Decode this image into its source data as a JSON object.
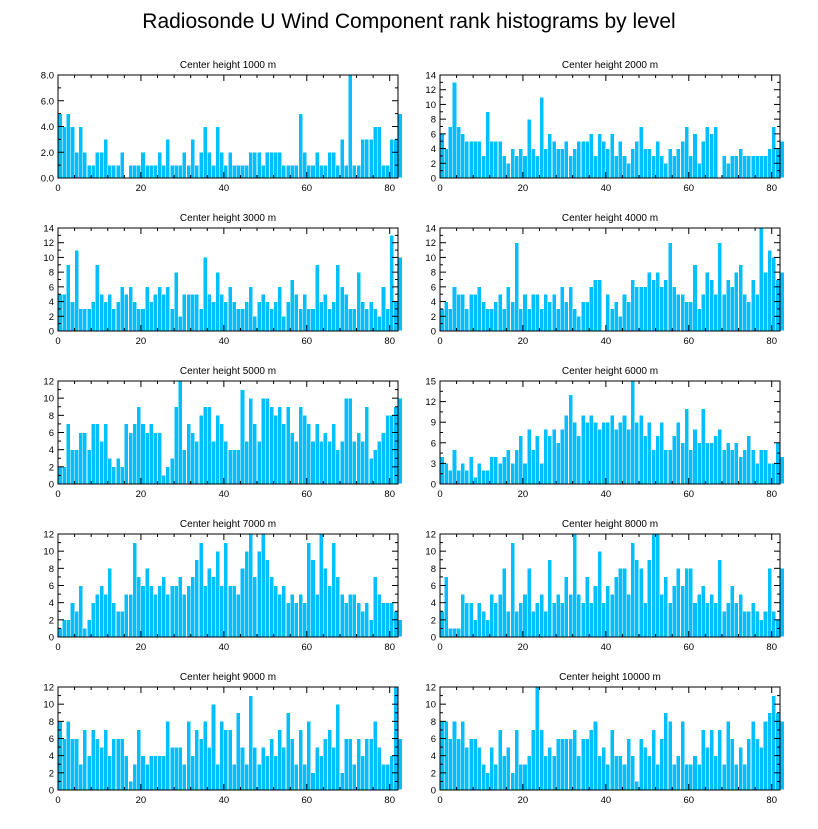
{
  "figure": {
    "title": "Radiosonde U Wind Component rank histograms by level"
  },
  "colors": {
    "bar": "#00bfff",
    "bar_edge": "#ffffff",
    "axis": "#000000"
  },
  "chart_data": [
    {
      "type": "bar",
      "title": "Center height 1000 m",
      "xlim": [
        0,
        82
      ],
      "ylim": [
        0,
        8
      ],
      "xticks": [
        0,
        20,
        40,
        60,
        80
      ],
      "yticks": [
        0,
        2,
        4,
        6,
        8
      ],
      "ytick_labels": [
        "0.0",
        "2.0",
        "4.0",
        "6.0",
        "8.0"
      ],
      "values": [
        5,
        4,
        5,
        4,
        2,
        4,
        2,
        1,
        1,
        2,
        2,
        3,
        1,
        1,
        1,
        2,
        0,
        1,
        1,
        1,
        2,
        1,
        1,
        1,
        2,
        1,
        3,
        1,
        1,
        1,
        2,
        1,
        3,
        1,
        2,
        4,
        2,
        1,
        4,
        2,
        1,
        2,
        1,
        1,
        1,
        1,
        2,
        2,
        2,
        1,
        2,
        2,
        2,
        2,
        1,
        1,
        1,
        1,
        5,
        2,
        1,
        1,
        2,
        1,
        1,
        2,
        2,
        1,
        3,
        1,
        8,
        1,
        1,
        3,
        3,
        3,
        4,
        4,
        1,
        1,
        3,
        3,
        5
      ]
    },
    {
      "type": "bar",
      "title": "Center height 2000 m",
      "xlim": [
        0,
        82
      ],
      "ylim": [
        0,
        14
      ],
      "xticks": [
        0,
        20,
        40,
        60,
        80
      ],
      "yticks": [
        0,
        2,
        4,
        6,
        8,
        10,
        12,
        14
      ],
      "ytick_labels": [
        "0",
        "2",
        "4",
        "6",
        "8",
        "10",
        "12",
        "14"
      ],
      "values": [
        6,
        4,
        7,
        13,
        7,
        6,
        5,
        5,
        5,
        5,
        3,
        9,
        5,
        5,
        5,
        3,
        2,
        4,
        3,
        4,
        3,
        8,
        4,
        3,
        11,
        4,
        6,
        5,
        4,
        4,
        5,
        3,
        4,
        5,
        5,
        5,
        6,
        3,
        6,
        5,
        4,
        6,
        3,
        5,
        3,
        2,
        4,
        5,
        7,
        4,
        4,
        3,
        5,
        3,
        2,
        4,
        3,
        4,
        5,
        7,
        3,
        6,
        2,
        5,
        7,
        6,
        7,
        0,
        3,
        2,
        3,
        3,
        4,
        3,
        3,
        3,
        3,
        3,
        3,
        4,
        7,
        4,
        5
      ]
    },
    {
      "type": "bar",
      "title": "Center height 3000 m",
      "xlim": [
        0,
        82
      ],
      "ylim": [
        0,
        14
      ],
      "xticks": [
        0,
        20,
        40,
        60,
        80
      ],
      "yticks": [
        0,
        2,
        4,
        6,
        8,
        10,
        12,
        14
      ],
      "ytick_labels": [
        "0",
        "2",
        "4",
        "6",
        "8",
        "10",
        "12",
        "14"
      ],
      "values": [
        5,
        5,
        9,
        4,
        11,
        3,
        3,
        3,
        4,
        9,
        5,
        4,
        5,
        3,
        4,
        6,
        5,
        6,
        4,
        3,
        3,
        6,
        4,
        5,
        6,
        5,
        6,
        3,
        8,
        2,
        5,
        5,
        5,
        5,
        3,
        10,
        5,
        4,
        8,
        5,
        4,
        6,
        4,
        3,
        3,
        4,
        6,
        2,
        4,
        5,
        4,
        3,
        4,
        6,
        2,
        4,
        7,
        5,
        3,
        5,
        3,
        3,
        9,
        4,
        5,
        3,
        4,
        9,
        6,
        5,
        3,
        3,
        8,
        4,
        3,
        4,
        3,
        2,
        6,
        3,
        13,
        4,
        10
      ]
    },
    {
      "type": "bar",
      "title": "Center height 4000 m",
      "xlim": [
        0,
        82
      ],
      "ylim": [
        0,
        14
      ],
      "xticks": [
        0,
        20,
        40,
        60,
        80
      ],
      "yticks": [
        0,
        2,
        4,
        6,
        8,
        10,
        12,
        14
      ],
      "ytick_labels": [
        "0",
        "2",
        "4",
        "6",
        "8",
        "10",
        "12",
        "14"
      ],
      "values": [
        3,
        4,
        3,
        6,
        5,
        5,
        3,
        5,
        5,
        6,
        4,
        3,
        3,
        4,
        5,
        3,
        6,
        4,
        12,
        3,
        5,
        3,
        5,
        5,
        3,
        5,
        4,
        5,
        3,
        6,
        4,
        6,
        3,
        2,
        4,
        4,
        6,
        7,
        7,
        0,
        5,
        3,
        4,
        2,
        5,
        4,
        7,
        6,
        6,
        6,
        8,
        7,
        8,
        6,
        7,
        12,
        6,
        5,
        5,
        4,
        4,
        9,
        3,
        5,
        8,
        7,
        5,
        12,
        5,
        7,
        6,
        8,
        9,
        5,
        4,
        7,
        5,
        14,
        8,
        11,
        10,
        7,
        8
      ]
    },
    {
      "type": "bar",
      "title": "Center height 5000 m",
      "xlim": [
        0,
        82
      ],
      "ylim": [
        0,
        12
      ],
      "xticks": [
        0,
        20,
        40,
        60,
        80
      ],
      "yticks": [
        0,
        2,
        4,
        6,
        8,
        10,
        12
      ],
      "ytick_labels": [
        "0",
        "2",
        "4",
        "6",
        "8",
        "10",
        "12"
      ],
      "values": [
        2,
        2,
        7,
        4,
        4,
        6,
        6,
        4,
        7,
        7,
        5,
        7,
        3,
        2,
        3,
        2,
        7,
        6,
        7,
        9,
        7,
        6,
        7,
        6,
        6,
        1,
        2,
        3,
        9,
        12,
        4,
        7,
        6,
        5,
        8,
        9,
        9,
        5,
        8,
        7,
        5,
        4,
        4,
        4,
        11,
        5,
        10,
        7,
        5,
        10,
        10,
        9,
        8,
        9,
        7,
        9,
        6,
        5,
        9,
        8,
        7,
        5,
        7,
        5,
        6,
        5,
        7,
        4,
        5,
        10,
        10,
        5,
        6,
        5,
        9,
        3,
        4,
        5,
        6,
        8,
        8,
        9,
        10
      ]
    },
    {
      "type": "bar",
      "title": "Center height 6000 m",
      "xlim": [
        0,
        82
      ],
      "ylim": [
        0,
        15
      ],
      "xticks": [
        0,
        20,
        40,
        60,
        80
      ],
      "yticks": [
        0,
        3,
        6,
        9,
        12,
        15
      ],
      "ytick_labels": [
        "0",
        "3",
        "6",
        "9",
        "12",
        "15"
      ],
      "values": [
        4,
        3,
        2,
        5,
        2,
        3,
        2,
        4,
        1,
        3,
        2,
        2,
        4,
        4,
        3,
        4,
        5,
        3,
        5,
        7,
        3,
        8,
        5,
        7,
        3,
        8,
        7,
        8,
        6,
        8,
        10,
        13,
        9,
        7,
        10,
        9,
        10,
        9,
        8,
        9,
        9,
        10,
        8,
        9,
        10,
        8,
        15,
        9,
        10,
        7,
        9,
        5,
        7,
        9,
        5,
        5,
        7,
        9,
        6,
        11,
        5,
        8,
        6,
        11,
        6,
        6,
        7,
        8,
        5,
        6,
        5,
        6,
        4,
        5,
        7,
        5,
        3,
        5,
        5,
        3,
        3,
        6,
        4
      ]
    },
    {
      "type": "bar",
      "title": "Center height 7000 m",
      "xlim": [
        0,
        82
      ],
      "ylim": [
        0,
        12
      ],
      "xticks": [
        0,
        20,
        40,
        60,
        80
      ],
      "yticks": [
        0,
        2,
        4,
        6,
        8,
        10,
        12
      ],
      "ytick_labels": [
        "0",
        "2",
        "4",
        "6",
        "8",
        "10",
        "12"
      ],
      "values": [
        1,
        2,
        2,
        4,
        3,
        6,
        1,
        2,
        4,
        5,
        6,
        5,
        8,
        4,
        3,
        3,
        5,
        5,
        11,
        7,
        6,
        8,
        6,
        5,
        6,
        7,
        5,
        6,
        6,
        7,
        5,
        6,
        7,
        9,
        11,
        6,
        8,
        7,
        10,
        6,
        11,
        6,
        6,
        5,
        8,
        10,
        12,
        7,
        10,
        12,
        9,
        7,
        6,
        5,
        6,
        4,
        5,
        4,
        5,
        4,
        11,
        9,
        5,
        12,
        8,
        6,
        11,
        7,
        5,
        4,
        5,
        5,
        4,
        3,
        4,
        2,
        7,
        5,
        4,
        4,
        4,
        3,
        2
      ]
    },
    {
      "type": "bar",
      "title": "Center height 8000 m",
      "xlim": [
        0,
        82
      ],
      "ylim": [
        0,
        12
      ],
      "xticks": [
        0,
        20,
        40,
        60,
        80
      ],
      "yticks": [
        0,
        2,
        4,
        6,
        8,
        10,
        12
      ],
      "ytick_labels": [
        "0",
        "2",
        "4",
        "6",
        "8",
        "10",
        "12"
      ],
      "values": [
        3,
        7,
        1,
        1,
        1,
        5,
        4,
        4,
        2,
        4,
        3,
        2,
        5,
        4,
        5,
        8,
        3,
        11,
        3,
        4,
        5,
        8,
        3,
        4,
        5,
        3,
        9,
        4,
        5,
        4,
        7,
        5,
        12,
        5,
        4,
        7,
        4,
        6,
        10,
        4,
        6,
        5,
        7,
        8,
        8,
        5,
        11,
        9,
        8,
        4,
        9,
        12,
        12,
        5,
        7,
        4,
        6,
        8,
        6,
        8,
        8,
        4,
        5,
        6,
        4,
        5,
        4,
        9,
        3,
        4,
        6,
        4,
        5,
        3,
        3,
        4,
        3,
        2,
        3,
        8,
        3,
        2,
        8
      ]
    },
    {
      "type": "bar",
      "title": "Center height 9000 m",
      "xlim": [
        0,
        82
      ],
      "ylim": [
        0,
        12
      ],
      "xticks": [
        0,
        20,
        40,
        60,
        80
      ],
      "yticks": [
        0,
        2,
        4,
        6,
        8,
        10,
        12
      ],
      "ytick_labels": [
        "0",
        "2",
        "4",
        "6",
        "8",
        "10",
        "12"
      ],
      "values": [
        8,
        6,
        8,
        6,
        6,
        3,
        7,
        4,
        7,
        6,
        5,
        7,
        4,
        6,
        6,
        6,
        4,
        1,
        3,
        7,
        4,
        3,
        4,
        4,
        4,
        4,
        8,
        5,
        5,
        5,
        3,
        8,
        4,
        7,
        6,
        8,
        5,
        10,
        3,
        8,
        7,
        7,
        3,
        9,
        5,
        3,
        11,
        5,
        3,
        5,
        4,
        6,
        4,
        7,
        5,
        9,
        6,
        3,
        7,
        3,
        8,
        2,
        5,
        4,
        6,
        7,
        5,
        10,
        2,
        6,
        6,
        3,
        6,
        4,
        6,
        6,
        8,
        5,
        3,
        3,
        4,
        12,
        6
      ]
    },
    {
      "type": "bar",
      "title": "Center height 10000 m",
      "xlim": [
        0,
        82
      ],
      "ylim": [
        0,
        12
      ],
      "xticks": [
        0,
        20,
        40,
        60,
        80
      ],
      "yticks": [
        0,
        2,
        4,
        6,
        8,
        10,
        12
      ],
      "ytick_labels": [
        "0",
        "2",
        "4",
        "6",
        "8",
        "10",
        "12"
      ],
      "values": [
        8,
        8,
        6,
        8,
        6,
        8,
        5,
        6,
        6,
        5,
        3,
        2,
        5,
        3,
        7,
        4,
        5,
        2,
        7,
        3,
        3,
        4,
        7,
        12,
        7,
        4,
        5,
        4,
        6,
        6,
        6,
        6,
        7,
        4,
        6,
        6,
        7,
        8,
        4,
        5,
        3,
        7,
        4,
        4,
        3,
        6,
        4,
        1,
        6,
        5,
        4,
        7,
        3,
        6,
        9,
        8,
        3,
        4,
        8,
        3,
        3,
        4,
        3,
        7,
        5,
        7,
        4,
        7,
        3,
        8,
        6,
        3,
        5,
        3,
        6,
        8,
        6,
        5,
        8,
        9,
        11,
        9,
        8
      ]
    }
  ]
}
